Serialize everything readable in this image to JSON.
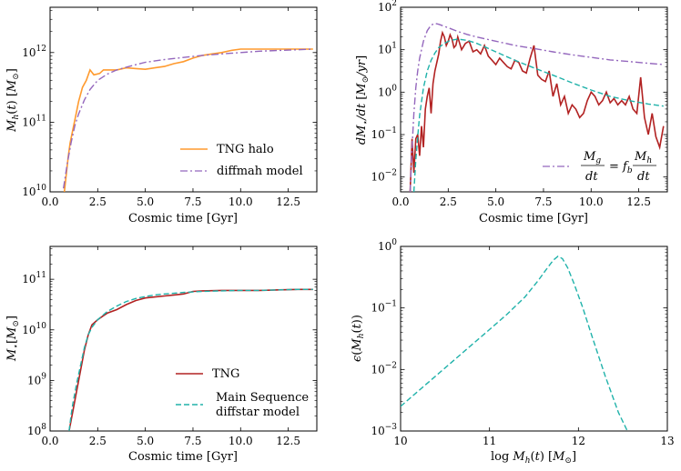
{
  "colors": {
    "orange": "#ff9a2e",
    "purple": "#9467bd",
    "darkred": "#b22222",
    "teal": "#20b2aa"
  },
  "chart_data": [
    {
      "id": "p1",
      "type": "line",
      "scale_y": "log",
      "xlim": [
        0,
        14
      ],
      "ylim_exp": [
        10,
        12.65
      ],
      "xlabel": "Cosmic time [Gyr]",
      "ylabel": "M_h(t) [M⊙]",
      "xticks": [
        "0.0",
        "2.5",
        "5.0",
        "7.5",
        "10.0",
        "12.5"
      ],
      "xtick_values": [
        0,
        2.5,
        5,
        7.5,
        10,
        12.5
      ],
      "yticks": [
        {
          "base": "10",
          "exp": "10",
          "v": 10
        },
        {
          "base": "10",
          "exp": "11",
          "v": 11
        },
        {
          "base": "10",
          "exp": "12",
          "v": 12
        }
      ],
      "legend": "lower-right",
      "series": [
        {
          "name": "TNG halo",
          "color": "orange",
          "dash": "",
          "x": [
            0.75,
            0.85,
            0.95,
            1.05,
            1.2,
            1.35,
            1.5,
            1.7,
            1.9,
            2.1,
            2.3,
            2.6,
            2.8,
            3.0,
            3.5,
            4.0,
            4.5,
            5.0,
            5.5,
            6.0,
            6.5,
            7.0,
            7.5,
            8.0,
            8.5,
            9.0,
            9.5,
            10.0,
            10.5,
            11.0,
            12.0,
            13.0,
            13.8
          ],
          "y": [
            10.0,
            10.25,
            10.5,
            10.7,
            10.9,
            11.1,
            11.3,
            11.5,
            11.6,
            11.75,
            11.68,
            11.7,
            11.75,
            11.75,
            11.75,
            11.78,
            11.77,
            11.76,
            11.78,
            11.8,
            11.84,
            11.87,
            11.92,
            11.96,
            11.98,
            12.0,
            12.03,
            12.05,
            12.05,
            12.05,
            12.05,
            12.05,
            12.05
          ]
        },
        {
          "name": "diffmah model",
          "color": "purple",
          "dash": "8,3,2,3",
          "x": [
            0.7,
            0.9,
            1.1,
            1.3,
            1.5,
            1.8,
            2.1,
            2.5,
            3.0,
            3.5,
            4.0,
            5.0,
            6.0,
            7.0,
            8.0,
            9.0,
            10.0,
            11.0,
            12.0,
            13.0,
            13.8
          ],
          "y": [
            10.05,
            10.4,
            10.7,
            10.95,
            11.12,
            11.32,
            11.47,
            11.6,
            11.69,
            11.75,
            11.79,
            11.86,
            11.9,
            11.93,
            11.96,
            11.98,
            12.0,
            12.02,
            12.03,
            12.04,
            12.05
          ]
        }
      ]
    },
    {
      "id": "p2",
      "type": "line",
      "scale_y": "log",
      "xlim": [
        0,
        14
      ],
      "ylim_exp": [
        -2.35,
        2
      ],
      "xlabel": "Cosmic time [Gyr]",
      "ylabel": "dM⋆/dt [M⊙/yr]",
      "xticks": [
        "0.0",
        "2.5",
        "5.0",
        "7.5",
        "10.0",
        "12.5"
      ],
      "xtick_values": [
        0,
        2.5,
        5,
        7.5,
        10,
        12.5
      ],
      "yticks": [
        {
          "base": "10",
          "exp": "−2",
          "v": -2
        },
        {
          "base": "10",
          "exp": "−1",
          "v": -1
        },
        {
          "base": "10",
          "exp": "0",
          "v": 0
        },
        {
          "base": "10",
          "exp": "1",
          "v": 1
        },
        {
          "base": "10",
          "exp": "2",
          "v": 2
        }
      ],
      "legend": "lower-right",
      "series": [
        {
          "name": "",
          "color": "darkred",
          "dash": "",
          "x": [
            0.5,
            0.6,
            0.7,
            0.8,
            0.9,
            1.0,
            1.1,
            1.2,
            1.3,
            1.4,
            1.5,
            1.6,
            1.7,
            1.8,
            1.9,
            2.0,
            2.1,
            2.2,
            2.3,
            2.4,
            2.5,
            2.6,
            2.7,
            2.8,
            2.9,
            3.0,
            3.2,
            3.4,
            3.6,
            3.8,
            4.0,
            4.2,
            4.4,
            4.6,
            4.8,
            5.0,
            5.2,
            5.4,
            5.6,
            5.8,
            6.0,
            6.2,
            6.4,
            6.6,
            6.8,
            7.0,
            7.2,
            7.4,
            7.6,
            7.8,
            8.0,
            8.2,
            8.4,
            8.6,
            8.8,
            9.0,
            9.2,
            9.4,
            9.6,
            9.8,
            10.0,
            10.2,
            10.4,
            10.6,
            10.8,
            11.0,
            11.2,
            11.4,
            11.6,
            11.8,
            12.0,
            12.2,
            12.4,
            12.6,
            12.8,
            13.0,
            13.2,
            13.4,
            13.6,
            13.8
          ],
          "y": [
            -2.35,
            -1.1,
            -1.9,
            -1.1,
            -1.0,
            -1.5,
            -0.8,
            -1.3,
            -0.4,
            -0.1,
            0.1,
            -0.5,
            0.2,
            0.5,
            0.7,
            0.9,
            1.2,
            1.4,
            1.3,
            1.1,
            1.2,
            1.35,
            1.25,
            1.05,
            1.1,
            1.3,
            1.0,
            1.15,
            1.2,
            0.95,
            1.0,
            0.9,
            1.1,
            0.85,
            0.75,
            0.65,
            0.8,
            0.7,
            0.6,
            0.55,
            0.75,
            0.7,
            0.5,
            0.45,
            0.8,
            1.1,
            0.4,
            0.3,
            0.25,
            0.5,
            -0.1,
            0.2,
            -0.3,
            -0.1,
            -0.5,
            -0.3,
            -0.4,
            -0.6,
            -0.5,
            -0.2,
            0.0,
            -0.1,
            -0.3,
            -0.2,
            0.0,
            -0.25,
            -0.15,
            -0.3,
            -0.2,
            -0.3,
            -0.1,
            -0.4,
            -0.5,
            0.35,
            -0.6,
            -1.0,
            -0.5,
            -1.05,
            -1.3,
            -0.8
          ]
        },
        {
          "name": "",
          "color": "teal",
          "dash": "6,3",
          "x": [
            0.7,
            0.8,
            0.9,
            1.0,
            1.2,
            1.4,
            1.6,
            1.8,
            2.0,
            2.3,
            2.6,
            3.0,
            3.5,
            4.0,
            4.5,
            5.0,
            6.0,
            7.0,
            8.0,
            9.0,
            10.0,
            11.0,
            12.0,
            13.0,
            13.8
          ],
          "y": [
            -2.35,
            -1.6,
            -1.05,
            -0.55,
            0.1,
            0.5,
            0.75,
            0.92,
            1.05,
            1.15,
            1.22,
            1.25,
            1.22,
            1.15,
            1.05,
            0.95,
            0.75,
            0.57,
            0.4,
            0.22,
            0.05,
            -0.1,
            -0.2,
            -0.28,
            -0.33
          ]
        },
        {
          "name": "dMg/dt = fb dMh/dt",
          "color": "purple",
          "dash": "8,3,2,3",
          "x": [
            0.5,
            0.6,
            0.7,
            0.8,
            0.9,
            1.0,
            1.2,
            1.4,
            1.6,
            1.8,
            2.0,
            2.3,
            2.6,
            3.0,
            3.5,
            4.0,
            5.0,
            6.0,
            7.0,
            8.0,
            9.0,
            10.0,
            11.0,
            12.0,
            13.0,
            13.8
          ],
          "y": [
            -2.35,
            -1.3,
            -0.5,
            0.1,
            0.5,
            0.8,
            1.2,
            1.45,
            1.58,
            1.62,
            1.6,
            1.55,
            1.5,
            1.43,
            1.36,
            1.3,
            1.2,
            1.1,
            1.03,
            0.95,
            0.88,
            0.82,
            0.76,
            0.72,
            0.68,
            0.65
          ]
        }
      ]
    },
    {
      "id": "p3",
      "type": "line",
      "scale_y": "log",
      "xlim": [
        0,
        14
      ],
      "ylim_exp": [
        8,
        11.65
      ],
      "xlabel": "Cosmic time [Gyr]",
      "ylabel": "M⋆[M⊙]",
      "xticks": [
        "0.0",
        "2.5",
        "5.0",
        "7.5",
        "10.0",
        "12.5"
      ],
      "xtick_values": [
        0,
        2.5,
        5,
        7.5,
        10,
        12.5
      ],
      "yticks": [
        {
          "base": "10",
          "exp": "8",
          "v": 8
        },
        {
          "base": "10",
          "exp": "9",
          "v": 9
        },
        {
          "base": "10",
          "exp": "10",
          "v": 10
        },
        {
          "base": "10",
          "exp": "11",
          "v": 11
        }
      ],
      "legend": "lower-right",
      "series": [
        {
          "name": "TNG",
          "color": "darkred",
          "dash": "",
          "x": [
            1.0,
            1.1,
            1.2,
            1.4,
            1.6,
            1.8,
            2.0,
            2.2,
            2.5,
            2.8,
            3.0,
            3.5,
            4.0,
            4.5,
            5.0,
            5.5,
            6.0,
            6.5,
            7.0,
            7.5,
            8.0,
            9.0,
            10.0,
            11.0,
            12.0,
            13.0,
            13.8
          ],
          "y": [
            8.0,
            8.2,
            8.4,
            8.8,
            9.2,
            9.6,
            9.9,
            10.1,
            10.2,
            10.28,
            10.33,
            10.4,
            10.5,
            10.58,
            10.63,
            10.65,
            10.67,
            10.69,
            10.71,
            10.76,
            10.77,
            10.78,
            10.78,
            10.78,
            10.79,
            10.8,
            10.8
          ]
        },
        {
          "name": "Main Sequence\ndiffstar model",
          "color": "teal",
          "dash": "6,3",
          "x": [
            1.0,
            1.1,
            1.2,
            1.4,
            1.6,
            1.8,
            2.0,
            2.2,
            2.5,
            2.8,
            3.0,
            3.5,
            4.0,
            4.5,
            5.0,
            5.5,
            6.0,
            7.0,
            8.0,
            9.0,
            10.0,
            11.0,
            12.0,
            13.0,
            13.8
          ],
          "y": [
            8.0,
            8.3,
            8.55,
            8.95,
            9.3,
            9.65,
            9.9,
            10.05,
            10.2,
            10.3,
            10.36,
            10.47,
            10.56,
            10.62,
            10.66,
            10.69,
            10.71,
            10.74,
            10.76,
            10.77,
            10.78,
            10.78,
            10.79,
            10.8,
            10.8
          ]
        }
      ]
    },
    {
      "id": "p4",
      "type": "line",
      "scale_y": "log",
      "xlim": [
        10,
        13
      ],
      "ylim_exp": [
        -3,
        0
      ],
      "xlabel": "log M_h(t) [M⊙]",
      "ylabel": "ε(M_h(t))",
      "xticks": [
        "10",
        "11",
        "12",
        "13"
      ],
      "xtick_values": [
        10,
        11,
        12,
        13
      ],
      "yticks": [
        {
          "base": "10",
          "exp": "−3",
          "v": -3
        },
        {
          "base": "10",
          "exp": "−2",
          "v": -2
        },
        {
          "base": "10",
          "exp": "−1",
          "v": -1
        },
        {
          "base": "10",
          "exp": "0",
          "v": 0
        }
      ],
      "legend": "none",
      "series": [
        {
          "name": "",
          "color": "teal",
          "dash": "6,3",
          "x": [
            10.0,
            10.2,
            10.4,
            10.6,
            10.8,
            11.0,
            11.2,
            11.4,
            11.55,
            11.65,
            11.72,
            11.77,
            11.82,
            11.88,
            11.95,
            12.05,
            12.15,
            12.3,
            12.45,
            12.55
          ],
          "y": [
            -2.6,
            -2.35,
            -2.1,
            -1.85,
            -1.6,
            -1.35,
            -1.1,
            -0.82,
            -0.55,
            -0.35,
            -0.22,
            -0.16,
            -0.2,
            -0.35,
            -0.6,
            -1.0,
            -1.45,
            -2.1,
            -2.7,
            -3.0
          ]
        }
      ]
    }
  ]
}
